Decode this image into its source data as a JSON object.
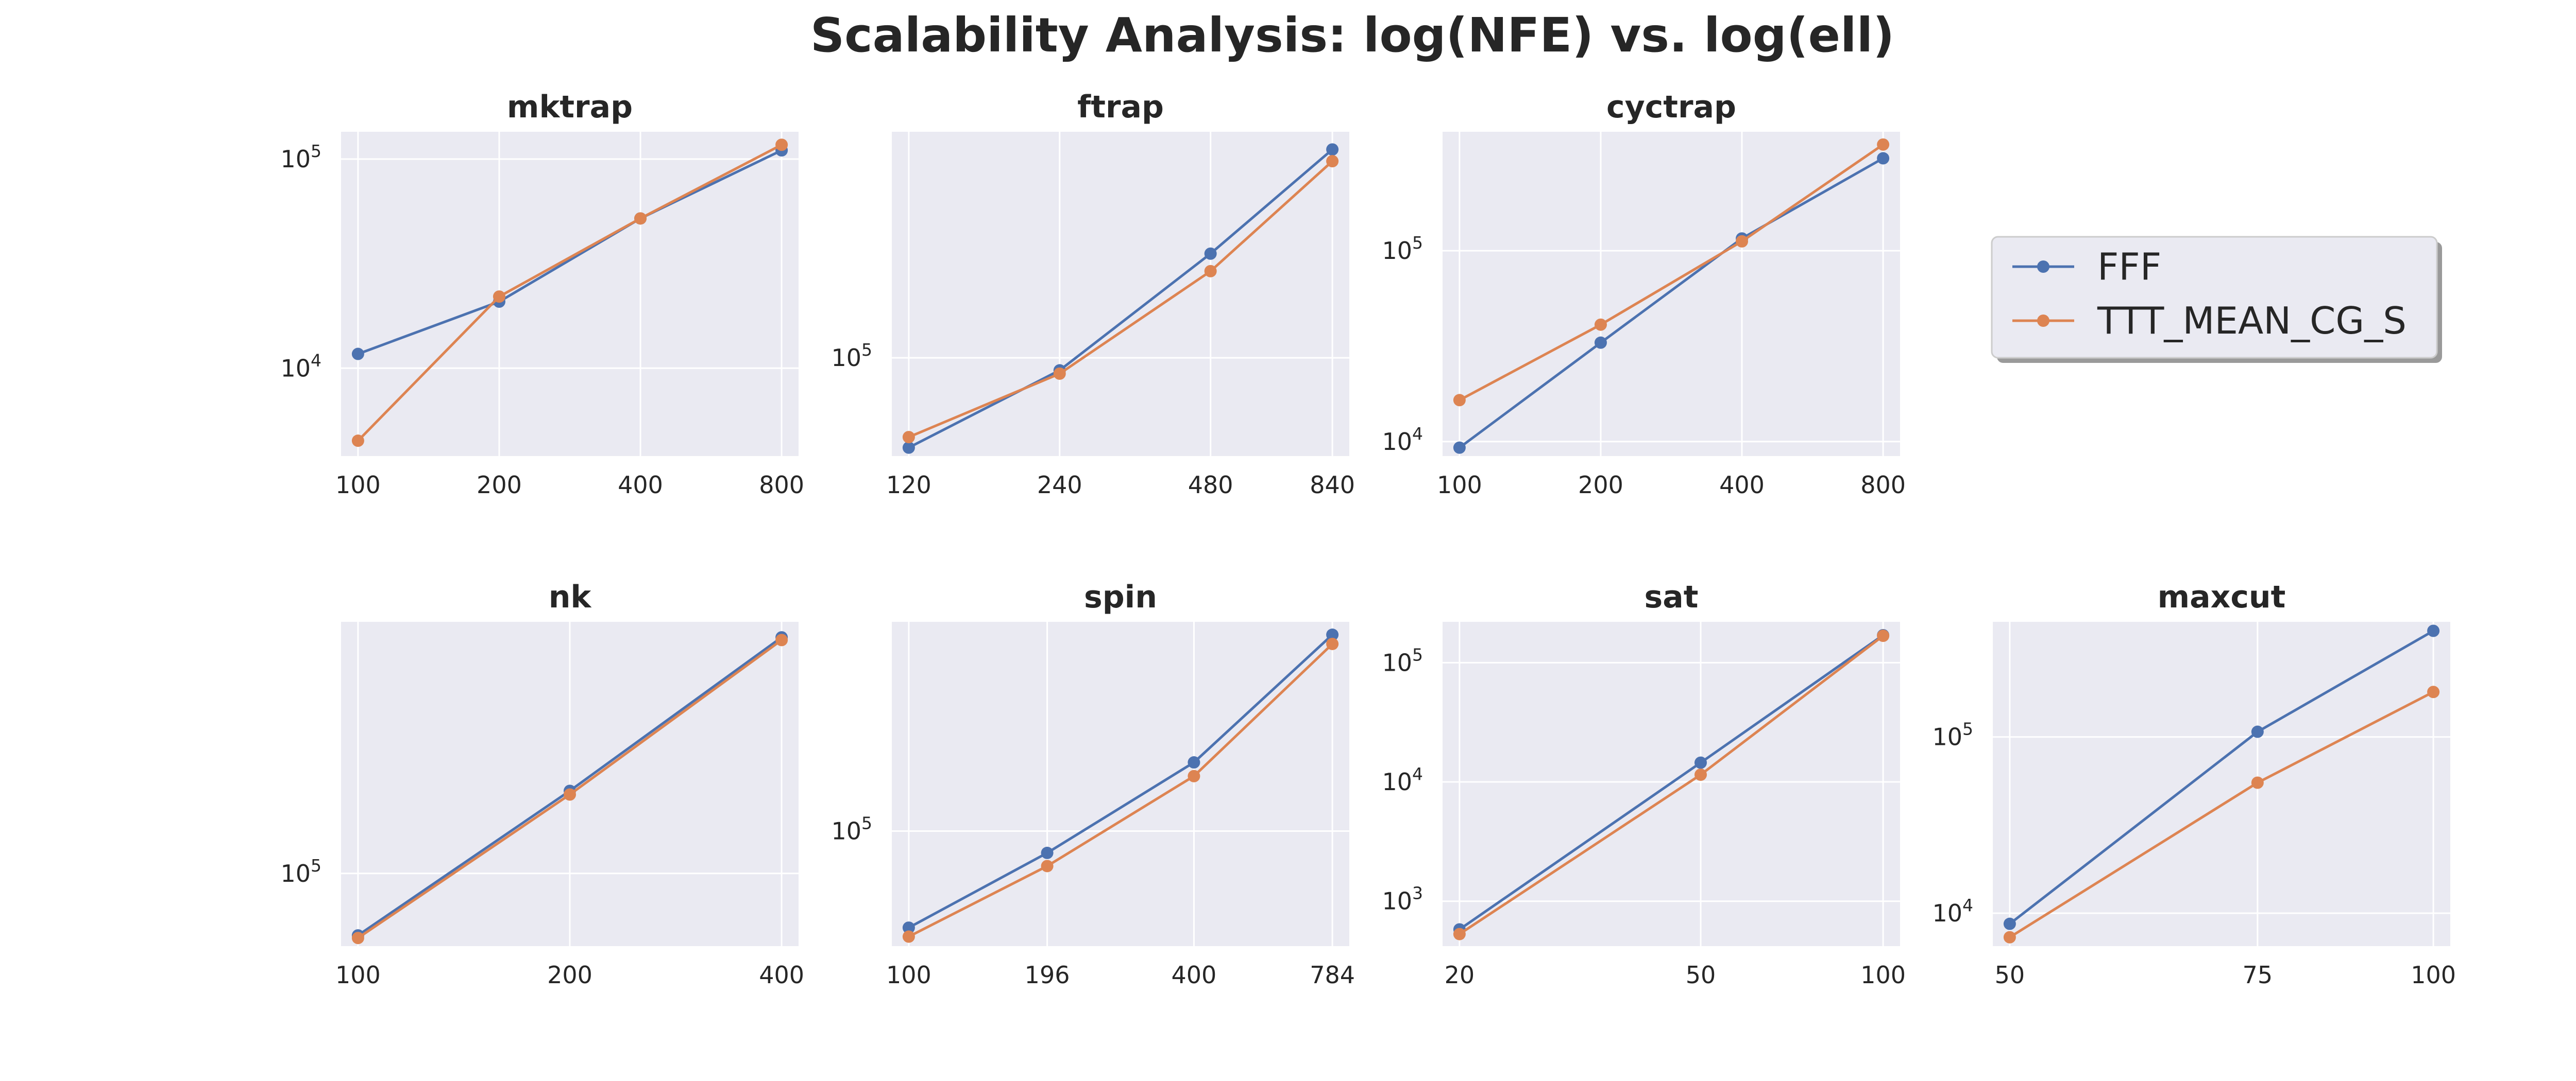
{
  "title": "Scalability Analysis: log(NFE) vs. log(ell)",
  "legend": {
    "placement": "right of top row",
    "entries": [
      {
        "label": "FFF",
        "color": "#4c72b0"
      },
      {
        "label": "TTT_MEAN_CG_S",
        "color": "#dd8452"
      }
    ]
  },
  "chart_data": [
    {
      "type": "line",
      "title": "mktrap",
      "xlabel": "",
      "ylabel": "",
      "xscale": "log",
      "yscale": "log",
      "grid": true,
      "x": [
        100,
        200,
        400,
        800
      ],
      "xticks": [
        "100",
        "200",
        "400",
        "800"
      ],
      "yticks": [
        {
          "value": 10000,
          "base": "10",
          "exp": "4"
        },
        {
          "value": 100000,
          "base": "10",
          "exp": "5"
        }
      ],
      "ylim": [
        3800,
        135000
      ],
      "series": [
        {
          "name": "FFF",
          "values": [
            11700,
            20800,
            52000,
            110000
          ]
        },
        {
          "name": "TTT_MEAN_CG_S",
          "values": [
            4500,
            22000,
            52000,
            117000
          ]
        }
      ]
    },
    {
      "type": "line",
      "title": "ftrap",
      "xlabel": "",
      "ylabel": "",
      "xscale": "log",
      "yscale": "log",
      "grid": true,
      "x": [
        120,
        240,
        480,
        840
      ],
      "xticks": [
        "120",
        "240",
        "480",
        "840"
      ],
      "yticks": [
        {
          "value": 100000,
          "base": "10",
          "exp": "5"
        }
      ],
      "ylim": [
        52000,
        450000
      ],
      "series": [
        {
          "name": "FFF",
          "values": [
            55000,
            92000,
            200000,
            400000
          ]
        },
        {
          "name": "TTT_MEAN_CG_S",
          "values": [
            59000,
            90000,
            178000,
            370000
          ]
        }
      ]
    },
    {
      "type": "line",
      "title": "cyctrap",
      "xlabel": "",
      "ylabel": "",
      "xscale": "log",
      "yscale": "log",
      "grid": true,
      "x": [
        100,
        200,
        400,
        800
      ],
      "xticks": [
        "100",
        "200",
        "400",
        "800"
      ],
      "yticks": [
        {
          "value": 10000,
          "base": "10",
          "exp": "4"
        },
        {
          "value": 100000,
          "base": "10",
          "exp": "5"
        }
      ],
      "ylim": [
        8400,
        420000
      ],
      "series": [
        {
          "name": "FFF",
          "values": [
            9300,
            33000,
            116000,
            305000
          ]
        },
        {
          "name": "TTT_MEAN_CG_S",
          "values": [
            16500,
            41000,
            112000,
            360000
          ]
        }
      ]
    },
    {
      "type": "line",
      "title": "nk",
      "xlabel": "",
      "ylabel": "",
      "xscale": "log",
      "yscale": "log",
      "grid": true,
      "x": [
        100,
        200,
        400
      ],
      "xticks": [
        "100",
        "200",
        "400"
      ],
      "yticks": [
        {
          "value": 100000,
          "base": "10",
          "exp": "5"
        }
      ],
      "ylim": [
        68000,
        380000
      ],
      "series": [
        {
          "name": "FFF",
          "values": [
            72000,
            155000,
            350000
          ]
        },
        {
          "name": "TTT_MEAN_CG_S",
          "values": [
            71000,
            152000,
            345000
          ]
        }
      ]
    },
    {
      "type": "line",
      "title": "spin",
      "xlabel": "",
      "ylabel": "",
      "xscale": "log",
      "yscale": "log",
      "grid": true,
      "x": [
        100,
        196,
        400,
        784
      ],
      "xticks": [
        "100",
        "196",
        "400",
        "784"
      ],
      "yticks": [
        {
          "value": 100000,
          "base": "10",
          "exp": "5"
        }
      ],
      "ylim": [
        48000,
        380000
      ],
      "series": [
        {
          "name": "FFF",
          "values": [
            54000,
            87000,
            155000,
            350000
          ]
        },
        {
          "name": "TTT_MEAN_CG_S",
          "values": [
            51000,
            80000,
            142000,
            330000
          ]
        }
      ]
    },
    {
      "type": "line",
      "title": "sat",
      "xlabel": "",
      "ylabel": "",
      "xscale": "log",
      "yscale": "log",
      "grid": true,
      "x": [
        20,
        50,
        100
      ],
      "xticks": [
        "20",
        "50",
        "100"
      ],
      "yticks": [
        {
          "value": 1000,
          "base": "10",
          "exp": "3"
        },
        {
          "value": 10000,
          "base": "10",
          "exp": "4"
        },
        {
          "value": 100000,
          "base": "10",
          "exp": "5"
        }
      ],
      "ylim": [
        420,
        220000
      ],
      "series": [
        {
          "name": "FFF",
          "values": [
            580,
            14500,
            170000
          ]
        },
        {
          "name": "TTT_MEAN_CG_S",
          "values": [
            530,
            11500,
            168000
          ]
        }
      ]
    },
    {
      "type": "line",
      "title": "maxcut",
      "xlabel": "",
      "ylabel": "",
      "xscale": "log",
      "yscale": "log",
      "grid": true,
      "x": [
        50,
        75,
        100
      ],
      "xticks": [
        "50",
        "75",
        "100"
      ],
      "yticks": [
        {
          "value": 10000,
          "base": "10",
          "exp": "4"
        },
        {
          "value": 100000,
          "base": "10",
          "exp": "5"
        }
      ],
      "ylim": [
        6500,
        450000
      ],
      "series": [
        {
          "name": "FFF",
          "values": [
            8700,
            107000,
            400000
          ]
        },
        {
          "name": "TTT_MEAN_CG_S",
          "values": [
            7300,
            55000,
            180000
          ]
        }
      ]
    }
  ]
}
